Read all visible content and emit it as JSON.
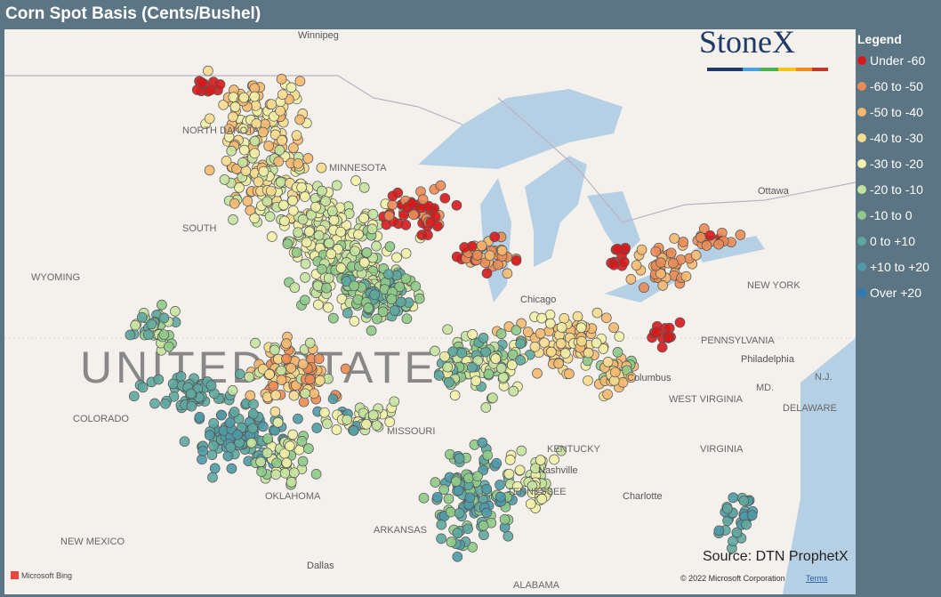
{
  "header": {
    "title": "Corn Spot Basis (Cents/Bushel)"
  },
  "logo": "StoneX",
  "legend": {
    "title": "Legend",
    "items": [
      {
        "label": "Under -60",
        "color": "#d7191c"
      },
      {
        "label": "-60 to -50",
        "color": "#ea8c55"
      },
      {
        "label": "-50 to -40",
        "color": "#f5b971"
      },
      {
        "label": "-40 to -30",
        "color": "#f7dc8f"
      },
      {
        "label": "-30 to -20",
        "color": "#f3f1a9"
      },
      {
        "label": "-20 to -10",
        "color": "#c5e3a0"
      },
      {
        "label": "-10 to 0",
        "color": "#8fca88"
      },
      {
        "label": "0 to +10",
        "color": "#5fa8a0"
      },
      {
        "label": "+10 to +20",
        "color": "#4f9aa7"
      },
      {
        "label": "Over +20",
        "color": "#2c7bb6"
      }
    ]
  },
  "map": {
    "places": [
      "Winnipeg",
      "NORTH DAKOTA",
      "MINNESOTA",
      "SOUTH",
      "WYOMING",
      "UNITED STATES",
      "COLORADO",
      "MISSOURI",
      "KENTUCKY",
      "TENNESSEE",
      "OKLAHOMA",
      "ARKANSAS",
      "NEW MEXICO",
      "Dallas",
      "ALABAMA",
      "Nashville",
      "Chicago",
      "Columbus",
      "WEST VIRGINIA",
      "VIRGINIA",
      "PENNSYLVANIA",
      "NEW YORK",
      "Philadelphia",
      "MD.",
      "N.J.",
      "DELAWARE",
      "Ottawa",
      "Charlotte"
    ],
    "source": "Source: DTN ProphetX",
    "copyright": "© 2022 Microsoft Corporation",
    "terms": "Terms",
    "provider": "Microsoft Bing"
  }
}
